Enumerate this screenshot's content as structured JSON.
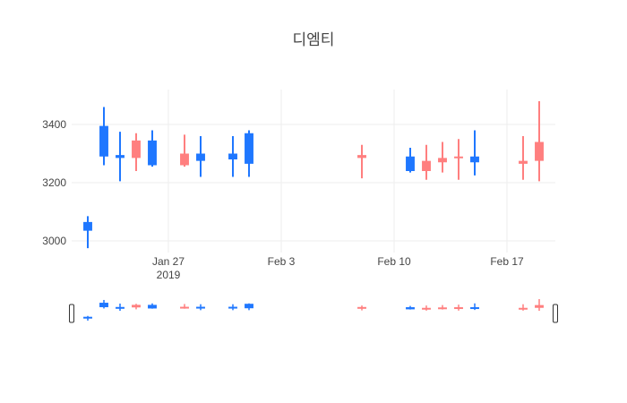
{
  "chart_data": {
    "type": "candlestick",
    "title": "디엠티",
    "xlabel": "",
    "ylabel": "",
    "ylim": [
      2960,
      3520
    ],
    "xrange": [
      "2019-01-21",
      "2019-02-20"
    ],
    "grid": true,
    "legend": "none",
    "y_ticks": [
      3000,
      3200,
      3400
    ],
    "x_ticks": [
      {
        "date": "2019-01-27",
        "label": "Jan 27",
        "sublabel": "2019"
      },
      {
        "date": "2019-02-03",
        "label": "Feb 3",
        "sublabel": ""
      },
      {
        "date": "2019-02-10",
        "label": "Feb 10",
        "sublabel": ""
      },
      {
        "date": "2019-02-17",
        "label": "Feb 17",
        "sublabel": ""
      }
    ],
    "colors": {
      "increasing": "#1f77ff",
      "decreasing": "#ff7f7f",
      "grid": "#eeeeee"
    },
    "rangeslider": true,
    "candles": [
      {
        "date": "2019-01-22",
        "open": 3035,
        "high": 3085,
        "low": 2975,
        "close": 3065
      },
      {
        "date": "2019-01-23",
        "open": 3290,
        "high": 3460,
        "low": 3260,
        "close": 3395
      },
      {
        "date": "2019-01-24",
        "open": 3285,
        "high": 3375,
        "low": 3205,
        "close": 3295
      },
      {
        "date": "2019-01-25",
        "open": 3345,
        "high": 3370,
        "low": 3240,
        "close": 3285
      },
      {
        "date": "2019-01-26",
        "open": 3260,
        "high": 3380,
        "low": 3255,
        "close": 3345
      },
      {
        "date": "2019-01-28",
        "open": 3300,
        "high": 3365,
        "low": 3255,
        "close": 3260
      },
      {
        "date": "2019-01-29",
        "open": 3275,
        "high": 3360,
        "low": 3220,
        "close": 3300
      },
      {
        "date": "2019-01-31",
        "open": 3280,
        "high": 3360,
        "low": 3220,
        "close": 3300
      },
      {
        "date": "2019-02-01",
        "open": 3265,
        "high": 3380,
        "low": 3220,
        "close": 3370
      },
      {
        "date": "2019-02-08",
        "open": 3295,
        "high": 3330,
        "low": 3215,
        "close": 3285
      },
      {
        "date": "2019-02-11",
        "open": 3240,
        "high": 3320,
        "low": 3235,
        "close": 3290
      },
      {
        "date": "2019-02-12",
        "open": 3275,
        "high": 3330,
        "low": 3210,
        "close": 3240
      },
      {
        "date": "2019-02-13",
        "open": 3285,
        "high": 3340,
        "low": 3235,
        "close": 3270
      },
      {
        "date": "2019-02-14",
        "open": 3290,
        "high": 3350,
        "low": 3210,
        "close": 3285
      },
      {
        "date": "2019-02-15",
        "open": 3270,
        "high": 3380,
        "low": 3225,
        "close": 3290
      },
      {
        "date": "2019-02-18",
        "open": 3275,
        "high": 3360,
        "low": 3210,
        "close": 3265
      },
      {
        "date": "2019-02-19",
        "open": 3340,
        "high": 3480,
        "low": 3205,
        "close": 3275
      }
    ]
  }
}
